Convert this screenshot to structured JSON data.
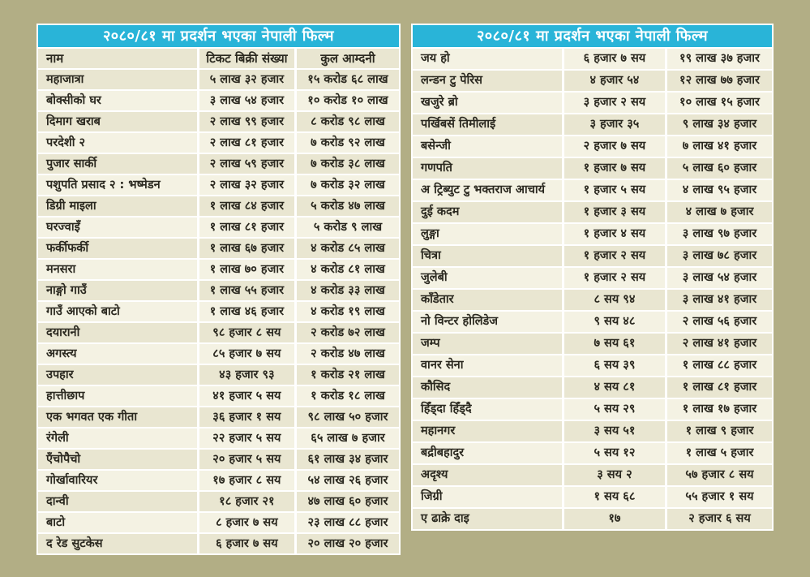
{
  "colors": {
    "background": "#b2ae85",
    "title_bar": "#29b4d8",
    "title_text": "#ffffff",
    "row_light": "#f4f2e3",
    "row_dark": "#e9e6d1",
    "grid_lines": "#ffffff",
    "cell_text": "#2b2920"
  },
  "chart_data": [
    {
      "type": "table",
      "title": "२०८०/८१ मा प्रदर्शन भएका नेपाली फिल्म",
      "columns": [
        "नाम",
        "टिकट बिक्री संख्या",
        "कुल आम्दनी"
      ],
      "rows": [
        [
          "महाजात्रा",
          "५ लाख ३२ हजार",
          "१५ करोड ६८ लाख"
        ],
        [
          "बोक्सीको घर",
          "३ लाख ५४ हजार",
          "१० करोड १० लाख"
        ],
        [
          "दिमाग खराब",
          "२ लाख ९९ हजार",
          "८ करोड ९८ लाख"
        ],
        [
          "परदेशी २",
          "२ लाख ८१ हजार",
          "७ करोड ९२ लाख"
        ],
        [
          "पुजार सार्की",
          "२ लाख ५९ हजार",
          "७ करोड ३८ लाख"
        ],
        [
          "पशुपति प्रसाद २ : भष्मेडन",
          "२ लाख ३२ हजार",
          "७ करोड ३२ लाख"
        ],
        [
          "डिग्री माइला",
          "१ लाख ८४ हजार",
          "५ करोड ४७ लाख"
        ],
        [
          "घरज्वाइँ",
          "१ लाख ८१ हजार",
          "५ करोड ९ लाख"
        ],
        [
          "फर्कीफर्की",
          "१ लाख ६७ हजार",
          "४ करोड ८५ लाख"
        ],
        [
          "मनसरा",
          "१ लाख ७० हजार",
          "४ करोड ८१ लाख"
        ],
        [
          "नाङ्गो गाउँ",
          "१ लाख ५५ हजार",
          "४ करोड ३३ लाख"
        ],
        [
          "गाउँ आएको बाटो",
          "१ लाख ४६ हजार",
          "४ करोड १९ लाख"
        ],
        [
          "दयारानी",
          "९८ हजार ८ सय",
          "२ करोड ७२ लाख"
        ],
        [
          "अगस्त्य",
          "८५ हजार ७ सय",
          "२ करोड ४७ लाख"
        ],
        [
          "उपहार",
          "४३ हजार ९३",
          "१ करोड २१ लाख"
        ],
        [
          "हात्तीछाप",
          "४१ हजार ५ सय",
          "१ करोड १८ लाख"
        ],
        [
          "एक भगवत एक गीता",
          "३६ हजार १ सय",
          "९८ लाख ५० हजार"
        ],
        [
          "रंगेली",
          "२२ हजार ५ सय",
          "६५ लाख ७ हजार"
        ],
        [
          "एँचोपैचो",
          "२० हजार ५ सय",
          "६१ लाख ३४ हजार"
        ],
        [
          "गोर्खावारियर",
          "१७ हजार ८ सय",
          "५४ लाख २६ हजार"
        ],
        [
          "दान्वी",
          "१८ हजार २१",
          "४७ लाख ६० हजार"
        ],
        [
          "बाटो",
          "८ हजार ७ सय",
          "२३ लाख ८८ हजार"
        ],
        [
          "द रेड सुटकेस",
          "६ हजार ७ सय",
          "२० लाख २० हजार"
        ]
      ]
    },
    {
      "type": "table",
      "title": "२०८०/८१ मा प्रदर्शन भएका नेपाली फिल्म",
      "columns": [],
      "rows": [
        [
          "जय हो",
          "६ हजार ७ सय",
          "१९ लाख ३७ हजार"
        ],
        [
          "लन्डन टु पेरिस",
          "४ हजार ५४",
          "१२ लाख ७७ हजार"
        ],
        [
          "खजुरे ब्रो",
          "३ हजार २ सय",
          "१० लाख १५ हजार"
        ],
        [
          "पर्खिबसें तिमीलाई",
          "३ हजार ३५",
          "९ लाख ३४ हजार"
        ],
        [
          "बसेन्जी",
          "२ हजार ७ सय",
          "७ लाख ४१ हजार"
        ],
        [
          "गणपति",
          "१ हजार ७ सय",
          "५ लाख ६० हजार"
        ],
        [
          "अ ट्रिब्युट टु भक्तराज आचार्य",
          "१ हजार ५ सय",
          "४ लाख ९५ हजार"
        ],
        [
          "दुई कदम",
          "१ हजार ३ सय",
          "४ लाख ७ हजार"
        ],
        [
          "लुङ्गा",
          "१ हजार ४ सय",
          "३ लाख ९७ हजार"
        ],
        [
          "चित्रा",
          "१ हजार २ सय",
          "३ लाख ७८ हजार"
        ],
        [
          "जुलेबी",
          "१ हजार २ सय",
          "३ लाख ५४ हजार"
        ],
        [
          "काँडेतार",
          "८ सय ९४",
          "३ लाख ४१ हजार"
        ],
        [
          "नो विन्टर होलिडेज",
          "९ सय ४८",
          "२ लाख ५६ हजार"
        ],
        [
          "जम्प",
          "७ सय ६१",
          "२ लाख ४१ हजार"
        ],
        [
          "वानर सेना",
          "६ सय ३९",
          "१ लाख ८८ हजार"
        ],
        [
          "कौसिद",
          "४ सय ८१",
          "१ लाख ८१ हजार"
        ],
        [
          "हिँड्दा हिँड्दै",
          "५ सय २९",
          "१ लाख १७ हजार"
        ],
        [
          "महानगर",
          "३ सय ५१",
          "१ लाख ९ हजार"
        ],
        [
          "बद्रीबहादुर",
          "५ सय १२",
          "१ लाख ५ हजार"
        ],
        [
          "अदृश्य",
          "३ सय २",
          "५७ हजार ८ सय"
        ],
        [
          "जिग्री",
          "१ सय ६८",
          "५५ हजार १ सय"
        ],
        [
          "ए ढाक्रे दाइ",
          "१७",
          "२ हजार ६ सय"
        ]
      ]
    }
  ]
}
